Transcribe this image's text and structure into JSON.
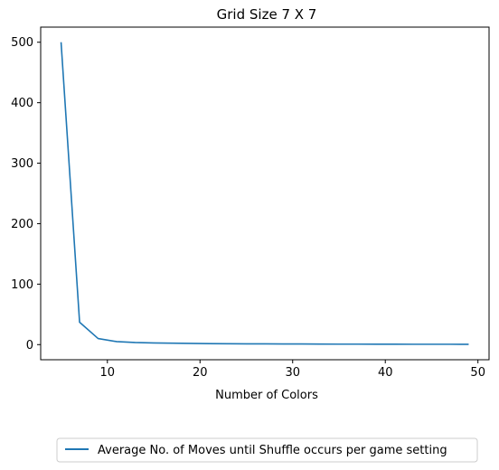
{
  "chart_data": {
    "type": "line",
    "title": "Grid Size 7 X 7",
    "xlabel": "Number of Colors",
    "ylabel": "",
    "xlim": [
      2.8,
      51.2
    ],
    "ylim": [
      -25,
      525
    ],
    "xticks": [
      10,
      20,
      30,
      40,
      50
    ],
    "yticks": [
      0,
      100,
      200,
      300,
      400,
      500
    ],
    "grid": false,
    "legend_position": "below",
    "series": [
      {
        "name": "Average No. of Moves until Shuffle occurs per game setting",
        "color": "#1f77b4",
        "x": [
          5,
          7,
          9,
          11,
          13,
          15,
          17,
          19,
          21,
          23,
          25,
          27,
          29,
          31,
          33,
          35,
          37,
          39,
          41,
          43,
          45,
          47,
          49
        ],
        "y": [
          500,
          37,
          10,
          5,
          3.5,
          2.8,
          2.3,
          2,
          1.7,
          1.5,
          1.3,
          1.2,
          1.1,
          1.0,
          0.9,
          0.8,
          0.8,
          0.7,
          0.7,
          0.6,
          0.6,
          0.6,
          0.5
        ]
      }
    ]
  }
}
